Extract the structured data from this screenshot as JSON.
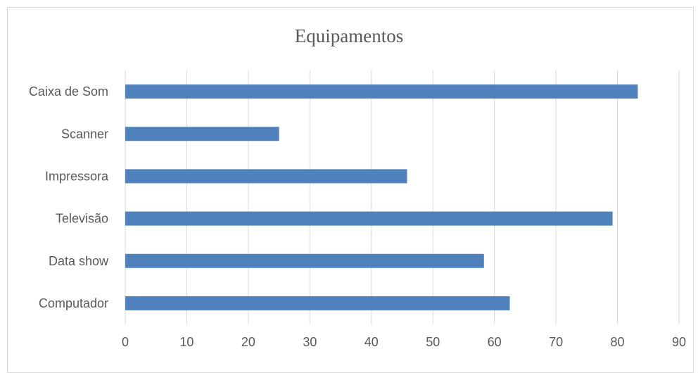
{
  "chart_data": {
    "type": "bar",
    "orientation": "horizontal",
    "title": "Equipamentos",
    "categories": [
      "Caixa de Som",
      "Scanner",
      "Impressora",
      "Televisão",
      "Data show",
      "Computador"
    ],
    "values": [
      83.3,
      25.0,
      45.8,
      79.2,
      58.3,
      62.5
    ],
    "xlim": [
      0,
      90
    ],
    "xticks": [
      "0",
      "10",
      "20",
      "30",
      "40",
      "50",
      "60",
      "70",
      "80",
      "90"
    ],
    "grid": true,
    "bar_color": "#4F81BD",
    "grid_color": "#d9d9d9"
  }
}
